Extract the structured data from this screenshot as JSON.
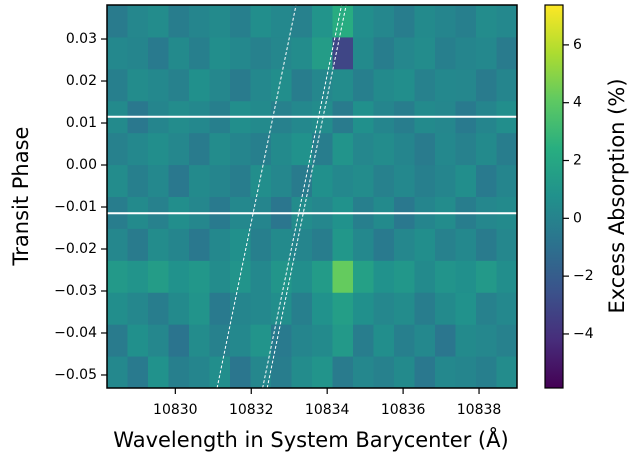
{
  "chart_data": {
    "type": "heatmap",
    "xlabel": "Wavelength in System Barycenter (Å)",
    "ylabel": "Transit Phase",
    "colorbar_label": "Excess Absorption (%)",
    "xlim": [
      10828.2,
      10839.0
    ],
    "ylim": [
      -0.0531,
      0.0381
    ],
    "clim": [
      -5.87,
      7.38
    ],
    "xticks": [
      10830,
      10832,
      10834,
      10836,
      10838
    ],
    "yticks": [
      {
        "value": -0.05,
        "label": "−0.05"
      },
      {
        "value": -0.04,
        "label": "−0.04"
      },
      {
        "value": -0.03,
        "label": "−0.03"
      },
      {
        "value": -0.02,
        "label": "−0.02"
      },
      {
        "value": -0.01,
        "label": "−0.01"
      },
      {
        "value": 0,
        "label": "0.00"
      },
      0.01,
      0.02,
      0.03
    ],
    "cticks": [
      {
        "value": -4,
        "label": "−4"
      },
      {
        "value": -2,
        "label": "−2"
      },
      0,
      2,
      4,
      6
    ],
    "colormap": "viridis",
    "x_edges": [
      10828.2,
      10828.74,
      10829.28,
      10829.82,
      10830.36,
      10830.9,
      10831.44,
      10831.98,
      10832.52,
      10833.06,
      10833.6,
      10834.14,
      10834.68,
      10835.22,
      10835.76,
      10836.3,
      10836.84,
      10837.38,
      10837.92,
      10838.46,
      10839.0
    ],
    "y_edges": [
      -0.0531,
      -0.0455,
      -0.0379,
      -0.0303,
      -0.0227,
      -0.0151,
      -0.0075,
      0.0001,
      0.0077,
      0.0153,
      0.0229,
      0.0305,
      0.0381
    ],
    "z": [
      [
        0.3,
        -0.5,
        0.8,
        -0.2,
        0.1,
        0.6,
        -0.7,
        0.2,
        -0.3,
        0.5,
        0.9,
        -0.4,
        0.2,
        -0.1,
        0.4,
        -0.6,
        0.3,
        0.1,
        -0.2,
        0.5
      ],
      [
        -0.4,
        0.7,
        0.2,
        -0.8,
        0.5,
        -0.1,
        0.3,
        0.9,
        -0.5,
        0.1,
        0.4,
        1.2,
        -0.3,
        0.6,
        -0.2,
        0.3,
        -0.7,
        0.4,
        0.2,
        -0.1
      ],
      [
        0.6,
        0.2,
        -0.3,
        0.4,
        0.9,
        -0.5,
        0.1,
        0.3,
        0.6,
        -0.2,
        0.8,
        1.5,
        0.7,
        0.2,
        0.5,
        -0.3,
        0.4,
        0.8,
        -0.1,
        0.3
      ],
      [
        1.2,
        0.9,
        1.4,
        0.8,
        1.1,
        0.5,
        0.9,
        0.3,
        1.0,
        0.6,
        1.3,
        4.2,
        1.6,
        0.8,
        1.1,
        0.4,
        0.9,
        0.7,
        1.2,
        0.6
      ],
      [
        0.2,
        -0.4,
        0.5,
        0.1,
        -0.6,
        0.3,
        0.7,
        -0.2,
        0.4,
        0.1,
        -0.3,
        1.1,
        0.3,
        -0.5,
        0.2,
        0.6,
        -0.1,
        0.3,
        -0.4,
        0.2
      ],
      [
        -0.3,
        0.4,
        -0.1,
        0.6,
        0.2,
        -0.5,
        0.3,
        0.1,
        -0.7,
        0.5,
        0.2,
        0.8,
        -0.2,
        0.4,
        -0.6,
        0.1,
        0.5,
        -0.3,
        0.2,
        0.4
      ],
      [
        0.5,
        -0.2,
        0.3,
        -0.6,
        0.4,
        0.1,
        -0.3,
        0.6,
        0.2,
        -0.4,
        0.7,
        0.3,
        0.5,
        -0.1,
        0.3,
        -0.2,
        0.1,
        0.6,
        -0.5,
        0.1
      ],
      [
        -0.1,
        0.3,
        0.6,
        0.2,
        -0.4,
        0.5,
        0.1,
        -0.2,
        0.4,
        0.8,
        -0.3,
        0.9,
        0.2,
        0.5,
        0.1,
        -0.4,
        0.3,
        -0.1,
        0.4,
        -0.3
      ],
      [
        0.4,
        -0.6,
        0.1,
        0.5,
        0.3,
        -0.2,
        0.6,
        0.4,
        -0.1,
        0.3,
        0.5,
        -0.4,
        0.7,
        0.1,
        -0.3,
        0.4,
        0.2,
        -0.5,
        0.1,
        0.6
      ],
      [
        -0.2,
        0.5,
        0.3,
        -0.1,
        0.7,
        0.2,
        -0.4,
        0.3,
        0.6,
        -0.3,
        0.2,
        0.5,
        -0.2,
        0.4,
        0.6,
        -0.1,
        0.3,
        0.2,
        -0.4,
        0.1
      ],
      [
        0.3,
        0.1,
        -0.5,
        0.4,
        -0.2,
        0.6,
        0.3,
        -0.1,
        0.2,
        0.5,
        1.4,
        -3.1,
        0.4,
        -0.3,
        0.2,
        0.5,
        -0.2,
        0.1,
        0.3,
        -0.4
      ],
      [
        -0.4,
        0.2,
        0.5,
        -0.3,
        0.1,
        0.4,
        -0.2,
        0.6,
        0.3,
        -0.1,
        0.9,
        2.3,
        0.6,
        0.2,
        -0.3,
        0.4,
        0.1,
        -0.2,
        0.5,
        0.3
      ]
    ],
    "hlines": [
      -0.0115,
      0.0115
    ],
    "line_color": "#ffffff",
    "dashed_lines": [
      {
        "x": [
          10831.1,
          10833.18
        ],
        "y": [
          -0.0531,
          0.0381
        ]
      },
      {
        "x": [
          10832.3,
          10834.38
        ],
        "y": [
          -0.0531,
          0.0381
        ]
      },
      {
        "x": [
          10832.42,
          10834.5
        ],
        "y": [
          -0.0531,
          0.0381
        ]
      }
    ]
  }
}
